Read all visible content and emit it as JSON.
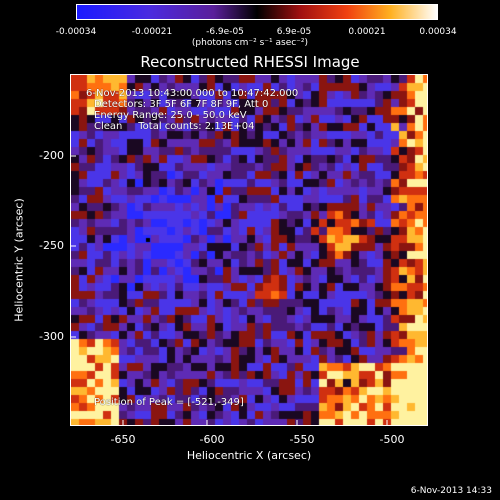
{
  "colorbar": {
    "ticks": [
      "-0.00034",
      "-0.00021",
      "-6.9e-05",
      "6.9e-05",
      "0.00021",
      "0.00034"
    ],
    "units": "(photons cm⁻² s⁻¹ asec⁻²)",
    "colors": [
      "#2020ff",
      "#6a1fc8",
      "#3a0a55",
      "#000000",
      "#c0301a",
      "#ff8a00",
      "#ffff9a",
      "#ffffff"
    ]
  },
  "title": "Reconstructed RHESSI Image",
  "annotations": {
    "time": "6-Nov-2013 10:43:00.000 to 10:47:42.000",
    "detectors": "Detectors: 3F 5F 6F 7F 8F 9F, Att 0",
    "energy": "Energy Range: 25.0 - 50.0 keV",
    "clean": "Clean     Total counts: 2.13E+04"
  },
  "peak": "Position of Peak = [-521,-349]",
  "axes": {
    "xlabel": "Heliocentric X (arcsec)",
    "ylabel": "Heliocentric Y (arcsec)",
    "xticks": [
      "-650",
      "-600",
      "-550",
      "-500"
    ],
    "yticks": [
      "-200",
      "-250",
      "-300"
    ]
  },
  "footer": "6-Nov-2013 14:33"
}
